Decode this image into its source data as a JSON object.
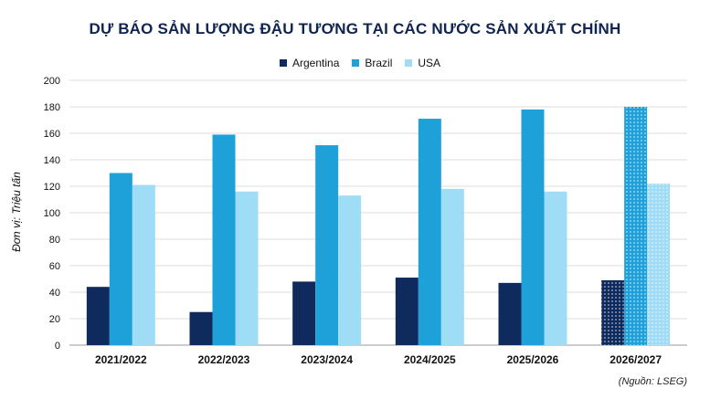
{
  "chart_data": {
    "type": "bar",
    "title": "DỰ BÁO SẢN LƯỢNG ĐẬU TƯƠNG TẠI CÁC NƯỚC SẢN XUẤT CHÍNH",
    "xlabel": "",
    "ylabel": "Đơn vị: Triệu tấn",
    "ylim": [
      0,
      200
    ],
    "yticks": [
      0,
      20,
      40,
      60,
      80,
      100,
      120,
      140,
      160,
      180,
      200
    ],
    "grid": true,
    "legend_position": "top",
    "categories": [
      "2021/2022",
      "2022/2023",
      "2023/2024",
      "2024/2025",
      "2025/2026",
      "2026/2027"
    ],
    "series": [
      {
        "name": "Argentina",
        "color": "#0f2a5c",
        "values": [
          44,
          25,
          48,
          51,
          47,
          49
        ]
      },
      {
        "name": "Brazil",
        "color": "#1da1d8",
        "values": [
          130,
          159,
          151,
          171,
          178,
          180
        ]
      },
      {
        "name": "USA",
        "color": "#9fdcf5",
        "values": [
          121,
          116,
          113,
          118,
          116,
          122
        ]
      }
    ],
    "forecast_category": "2026/2027",
    "source": "(Nguồn: LSEG)"
  }
}
